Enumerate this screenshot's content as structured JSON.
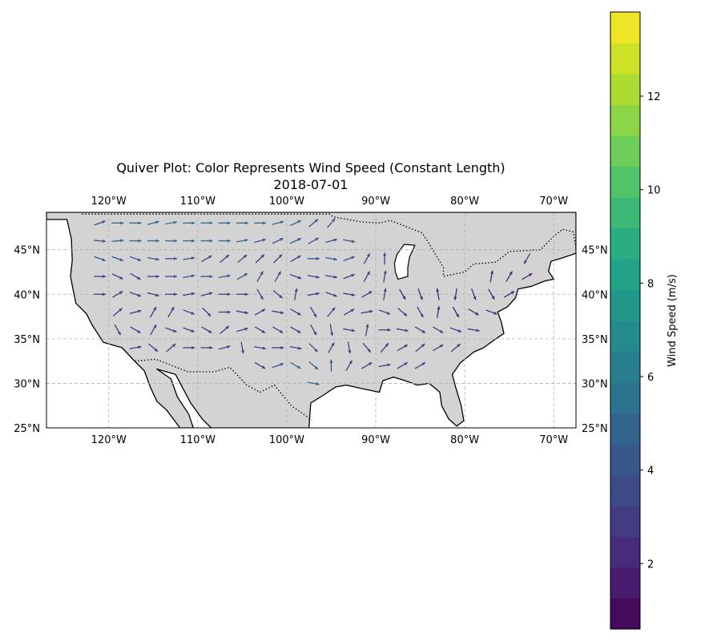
{
  "title": "Quiver Plot: Color Represents Wind Speed (Constant Length)",
  "subtitle": "2018-07-01",
  "colorbar_label": "Wind Speed (m/s)",
  "colors": {
    "land": "#d3d3d3",
    "coast": "#000000",
    "grid": "#b0b0b0",
    "viridis": [
      "#440154",
      "#482475",
      "#414487",
      "#355f8d",
      "#2a788e",
      "#21918c",
      "#22a884",
      "#44bf70",
      "#7ad151",
      "#bddf26",
      "#fde725"
    ]
  },
  "map": {
    "projection": "PlateCarree",
    "lon_range": [
      -127,
      -67.5
    ],
    "lat_range": [
      25,
      49.2
    ],
    "lon_ticks": [
      {
        "value": -120,
        "label": "120°W"
      },
      {
        "value": -110,
        "label": "110°W"
      },
      {
        "value": -100,
        "label": "100°W"
      },
      {
        "value": -90,
        "label": "90°W"
      },
      {
        "value": -80,
        "label": "80°W"
      },
      {
        "value": -70,
        "label": "70°W"
      }
    ],
    "lat_ticks": [
      {
        "value": 25,
        "label": "25°N"
      },
      {
        "value": 30,
        "label": "30°N"
      },
      {
        "value": 35,
        "label": "35°N"
      },
      {
        "value": 40,
        "label": "40°N"
      },
      {
        "value": 45,
        "label": "45°N"
      }
    ],
    "gridlines": true
  },
  "colorbar": {
    "vmin": 0.6,
    "vmax": 13.8,
    "ticks": [
      {
        "value": 2,
        "label": "2"
      },
      {
        "value": 4,
        "label": "4"
      },
      {
        "value": 6,
        "label": "6"
      },
      {
        "value": 8,
        "label": "8"
      },
      {
        "value": 10,
        "label": "10"
      },
      {
        "value": 12,
        "label": "12"
      }
    ]
  },
  "chart_data": {
    "type": "quiver",
    "date": "2018-07-01",
    "arrow_length": "constant",
    "color_variable": "Wind Speed (m/s)",
    "vectors": [
      {
        "lon": -121,
        "lat": 48,
        "dir": 20,
        "speed": 4
      },
      {
        "lon": -119,
        "lat": 48,
        "dir": 0,
        "speed": 5
      },
      {
        "lon": -117,
        "lat": 48,
        "dir": 0,
        "speed": 5
      },
      {
        "lon": -115,
        "lat": 48,
        "dir": 15,
        "speed": 5
      },
      {
        "lon": -113,
        "lat": 48,
        "dir": 10,
        "speed": 6
      },
      {
        "lon": -111,
        "lat": 48,
        "dir": 0,
        "speed": 6
      },
      {
        "lon": -109,
        "lat": 48,
        "dir": 0,
        "speed": 6
      },
      {
        "lon": -107,
        "lat": 48,
        "dir": 0,
        "speed": 5
      },
      {
        "lon": -105,
        "lat": 48,
        "dir": 0,
        "speed": 5
      },
      {
        "lon": -103,
        "lat": 48,
        "dir": 0,
        "speed": 5
      },
      {
        "lon": -101,
        "lat": 48,
        "dir": 15,
        "speed": 5
      },
      {
        "lon": -99,
        "lat": 48,
        "dir": 25,
        "speed": 5
      },
      {
        "lon": -97,
        "lat": 48,
        "dir": 40,
        "speed": 4
      },
      {
        "lon": -95,
        "lat": 48,
        "dir": 50,
        "speed": 4
      },
      {
        "lon": -121,
        "lat": 46,
        "dir": -5,
        "speed": 4
      },
      {
        "lon": -119,
        "lat": 46,
        "dir": 5,
        "speed": 5
      },
      {
        "lon": -117,
        "lat": 46,
        "dir": 0,
        "speed": 5
      },
      {
        "lon": -115,
        "lat": 46,
        "dir": 0,
        "speed": 5
      },
      {
        "lon": -113,
        "lat": 46,
        "dir": 0,
        "speed": 5
      },
      {
        "lon": -111,
        "lat": 46,
        "dir": 0,
        "speed": 5
      },
      {
        "lon": -109,
        "lat": 46,
        "dir": 0,
        "speed": 5
      },
      {
        "lon": -107,
        "lat": 46,
        "dir": 0,
        "speed": 5
      },
      {
        "lon": -105,
        "lat": 46,
        "dir": 10,
        "speed": 5
      },
      {
        "lon": -103,
        "lat": 46,
        "dir": 15,
        "speed": 4
      },
      {
        "lon": -101,
        "lat": 46,
        "dir": 25,
        "speed": 4
      },
      {
        "lon": -99,
        "lat": 46,
        "dir": 25,
        "speed": 4
      },
      {
        "lon": -97,
        "lat": 46,
        "dir": 30,
        "speed": 4
      },
      {
        "lon": -95,
        "lat": 46,
        "dir": 15,
        "speed": 4
      },
      {
        "lon": -93,
        "lat": 46,
        "dir": -10,
        "speed": 4
      },
      {
        "lon": -121,
        "lat": 44,
        "dir": -20,
        "speed": 4
      },
      {
        "lon": -119,
        "lat": 44,
        "dir": -20,
        "speed": 4
      },
      {
        "lon": -117,
        "lat": 44,
        "dir": -20,
        "speed": 4
      },
      {
        "lon": -115,
        "lat": 44,
        "dir": -10,
        "speed": 4
      },
      {
        "lon": -113,
        "lat": 44,
        "dir": 0,
        "speed": 4
      },
      {
        "lon": -111,
        "lat": 44,
        "dir": 10,
        "speed": 4
      },
      {
        "lon": -109,
        "lat": 44,
        "dir": 30,
        "speed": 3
      },
      {
        "lon": -107,
        "lat": 44,
        "dir": 40,
        "speed": 3
      },
      {
        "lon": -105,
        "lat": 44,
        "dir": 40,
        "speed": 3
      },
      {
        "lon": -103,
        "lat": 44,
        "dir": 45,
        "speed": 3
      },
      {
        "lon": -101,
        "lat": 44,
        "dir": 45,
        "speed": 3
      },
      {
        "lon": -99,
        "lat": 44,
        "dir": 30,
        "speed": 3
      },
      {
        "lon": -97,
        "lat": 44,
        "dir": 0,
        "speed": 4
      },
      {
        "lon": -95,
        "lat": 44,
        "dir": -10,
        "speed": 4
      },
      {
        "lon": -93,
        "lat": 44,
        "dir": 20,
        "speed": 4
      },
      {
        "lon": -91,
        "lat": 44,
        "dir": 60,
        "speed": 3
      },
      {
        "lon": -89,
        "lat": 44,
        "dir": 90,
        "speed": 3
      },
      {
        "lon": -73,
        "lat": 44,
        "dir": -120,
        "speed": 3
      },
      {
        "lon": -121,
        "lat": 42,
        "dir": 0,
        "speed": 3
      },
      {
        "lon": -119,
        "lat": 42,
        "dir": -25,
        "speed": 3
      },
      {
        "lon": -117,
        "lat": 42,
        "dir": -30,
        "speed": 3
      },
      {
        "lon": -115,
        "lat": 42,
        "dir": 0,
        "speed": 3
      },
      {
        "lon": -113,
        "lat": 42,
        "dir": 0,
        "speed": 4
      },
      {
        "lon": -111,
        "lat": 42,
        "dir": 10,
        "speed": 4
      },
      {
        "lon": -109,
        "lat": 42,
        "dir": 0,
        "speed": 4
      },
      {
        "lon": -107,
        "lat": 42,
        "dir": 10,
        "speed": 4
      },
      {
        "lon": -105,
        "lat": 42,
        "dir": 30,
        "speed": 4
      },
      {
        "lon": -103,
        "lat": 42,
        "dir": 60,
        "speed": 3
      },
      {
        "lon": -101,
        "lat": 42,
        "dir": 60,
        "speed": 3
      },
      {
        "lon": -99,
        "lat": 42,
        "dir": -20,
        "speed": 3
      },
      {
        "lon": -97,
        "lat": 42,
        "dir": -10,
        "speed": 3
      },
      {
        "lon": -95,
        "lat": 42,
        "dir": -10,
        "speed": 3
      },
      {
        "lon": -93,
        "lat": 42,
        "dir": 20,
        "speed": 3
      },
      {
        "lon": -91,
        "lat": 42,
        "dir": 60,
        "speed": 3
      },
      {
        "lon": -89,
        "lat": 42,
        "dir": 80,
        "speed": 3
      },
      {
        "lon": -77,
        "lat": 42,
        "dir": 80,
        "speed": 2
      },
      {
        "lon": -75,
        "lat": 42,
        "dir": 60,
        "speed": 2
      },
      {
        "lon": -73,
        "lat": 42,
        "dir": 30,
        "speed": 2
      },
      {
        "lon": -121,
        "lat": 40,
        "dir": 0,
        "speed": 3
      },
      {
        "lon": -119,
        "lat": 40,
        "dir": 30,
        "speed": 3
      },
      {
        "lon": -117,
        "lat": 40,
        "dir": -20,
        "speed": 3
      },
      {
        "lon": -115,
        "lat": 40,
        "dir": -15,
        "speed": 3
      },
      {
        "lon": -113,
        "lat": 40,
        "dir": 0,
        "speed": 3
      },
      {
        "lon": -111,
        "lat": 40,
        "dir": 10,
        "speed": 3
      },
      {
        "lon": -109,
        "lat": 40,
        "dir": 15,
        "speed": 3
      },
      {
        "lon": -107,
        "lat": 40,
        "dir": 0,
        "speed": 3
      },
      {
        "lon": -105,
        "lat": 40,
        "dir": 0,
        "speed": 3
      },
      {
        "lon": -103,
        "lat": 40,
        "dir": -60,
        "speed": 3
      },
      {
        "lon": -101,
        "lat": 40,
        "dir": -40,
        "speed": 3
      },
      {
        "lon": -99,
        "lat": 40,
        "dir": 80,
        "speed": 3
      },
      {
        "lon": -97,
        "lat": 40,
        "dir": 10,
        "speed": 3
      },
      {
        "lon": -95,
        "lat": 40,
        "dir": -20,
        "speed": 3
      },
      {
        "lon": -93,
        "lat": 40,
        "dir": -10,
        "speed": 3
      },
      {
        "lon": -91,
        "lat": 40,
        "dir": 30,
        "speed": 3
      },
      {
        "lon": -89,
        "lat": 40,
        "dir": 80,
        "speed": 3
      },
      {
        "lon": -87,
        "lat": 40,
        "dir": -60,
        "speed": 2
      },
      {
        "lon": -85,
        "lat": 40,
        "dir": -70,
        "speed": 2
      },
      {
        "lon": -83,
        "lat": 40,
        "dir": 100,
        "speed": 2
      },
      {
        "lon": -81,
        "lat": 40,
        "dir": -100,
        "speed": 2
      },
      {
        "lon": -79,
        "lat": 40,
        "dir": -70,
        "speed": 2
      },
      {
        "lon": -77,
        "lat": 40,
        "dir": -60,
        "speed": 2
      },
      {
        "lon": -75,
        "lat": 40,
        "dir": 30,
        "speed": 2
      },
      {
        "lon": -119,
        "lat": 38,
        "dir": 40,
        "speed": 3
      },
      {
        "lon": -117,
        "lat": 38,
        "dir": 15,
        "speed": 3
      },
      {
        "lon": -115,
        "lat": 38,
        "dir": 60,
        "speed": 3
      },
      {
        "lon": -113,
        "lat": 38,
        "dir": 60,
        "speed": 3
      },
      {
        "lon": -111,
        "lat": 38,
        "dir": -20,
        "speed": 3
      },
      {
        "lon": -109,
        "lat": 38,
        "dir": -45,
        "speed": 3
      },
      {
        "lon": -107,
        "lat": 38,
        "dir": 0,
        "speed": 3
      },
      {
        "lon": -105,
        "lat": 38,
        "dir": -10,
        "speed": 3
      },
      {
        "lon": -103,
        "lat": 38,
        "dir": 30,
        "speed": 3
      },
      {
        "lon": -101,
        "lat": 38,
        "dir": -10,
        "speed": 3
      },
      {
        "lon": -99,
        "lat": 38,
        "dir": -30,
        "speed": 3
      },
      {
        "lon": -97,
        "lat": 38,
        "dir": -60,
        "speed": 3
      },
      {
        "lon": -95,
        "lat": 38,
        "dir": 50,
        "speed": 3
      },
      {
        "lon": -93,
        "lat": 38,
        "dir": 30,
        "speed": 3
      },
      {
        "lon": -91,
        "lat": 38,
        "dir": 10,
        "speed": 3
      },
      {
        "lon": -89,
        "lat": 38,
        "dir": -20,
        "speed": 3
      },
      {
        "lon": -87,
        "lat": 38,
        "dir": -40,
        "speed": 3
      },
      {
        "lon": -85,
        "lat": 38,
        "dir": -60,
        "speed": 3
      },
      {
        "lon": -83,
        "lat": 38,
        "dir": 80,
        "speed": 2
      },
      {
        "lon": -81,
        "lat": 38,
        "dir": -60,
        "speed": 2
      },
      {
        "lon": -79,
        "lat": 38,
        "dir": -30,
        "speed": 2
      },
      {
        "lon": -77,
        "lat": 38,
        "dir": -20,
        "speed": 2
      },
      {
        "lon": -119,
        "lat": 36,
        "dir": -60,
        "speed": 3
      },
      {
        "lon": -117,
        "lat": 36,
        "dir": -30,
        "speed": 3
      },
      {
        "lon": -115,
        "lat": 36,
        "dir": 60,
        "speed": 3
      },
      {
        "lon": -113,
        "lat": 36,
        "dir": -20,
        "speed": 3
      },
      {
        "lon": -111,
        "lat": 36,
        "dir": -20,
        "speed": 3
      },
      {
        "lon": -109,
        "lat": 36,
        "dir": -30,
        "speed": 3
      },
      {
        "lon": -107,
        "lat": 36,
        "dir": 40,
        "speed": 3
      },
      {
        "lon": -105,
        "lat": 36,
        "dir": 15,
        "speed": 3
      },
      {
        "lon": -103,
        "lat": 36,
        "dir": -30,
        "speed": 3
      },
      {
        "lon": -101,
        "lat": 36,
        "dir": -30,
        "speed": 3
      },
      {
        "lon": -99,
        "lat": 36,
        "dir": -30,
        "speed": 3
      },
      {
        "lon": -97,
        "lat": 36,
        "dir": -60,
        "speed": 3
      },
      {
        "lon": -95,
        "lat": 36,
        "dir": -80,
        "speed": 3
      },
      {
        "lon": -93,
        "lat": 36,
        "dir": -10,
        "speed": 3
      },
      {
        "lon": -91,
        "lat": 36,
        "dir": 80,
        "speed": 3
      },
      {
        "lon": -89,
        "lat": 36,
        "dir": 0,
        "speed": 3
      },
      {
        "lon": -87,
        "lat": 36,
        "dir": -10,
        "speed": 3
      },
      {
        "lon": -85,
        "lat": 36,
        "dir": -30,
        "speed": 3
      },
      {
        "lon": -83,
        "lat": 36,
        "dir": -30,
        "speed": 3
      },
      {
        "lon": -81,
        "lat": 36,
        "dir": -20,
        "speed": 3
      },
      {
        "lon": -79,
        "lat": 36,
        "dir": -10,
        "speed": 3
      },
      {
        "lon": -117,
        "lat": 34,
        "dir": 10,
        "speed": 3
      },
      {
        "lon": -115,
        "lat": 34,
        "dir": -40,
        "speed": 3
      },
      {
        "lon": -113,
        "lat": 34,
        "dir": 40,
        "speed": 3
      },
      {
        "lon": -111,
        "lat": 34,
        "dir": 0,
        "speed": 3
      },
      {
        "lon": -109,
        "lat": 34,
        "dir": 0,
        "speed": 3
      },
      {
        "lon": -107,
        "lat": 34,
        "dir": 15,
        "speed": 3
      },
      {
        "lon": -105,
        "lat": 34,
        "dir": -80,
        "speed": 3
      },
      {
        "lon": -103,
        "lat": 34,
        "dir": -10,
        "speed": 3
      },
      {
        "lon": -101,
        "lat": 34,
        "dir": 0,
        "speed": 3
      },
      {
        "lon": -99,
        "lat": 34,
        "dir": -10,
        "speed": 3
      },
      {
        "lon": -97,
        "lat": 34,
        "dir": -45,
        "speed": 4
      },
      {
        "lon": -95,
        "lat": 34,
        "dir": 60,
        "speed": 3
      },
      {
        "lon": -93,
        "lat": 34,
        "dir": -80,
        "speed": 3
      },
      {
        "lon": -91,
        "lat": 34,
        "dir": -50,
        "speed": 3
      },
      {
        "lon": -89,
        "lat": 34,
        "dir": 50,
        "speed": 3
      },
      {
        "lon": -87,
        "lat": 34,
        "dir": 30,
        "speed": 3
      },
      {
        "lon": -85,
        "lat": 34,
        "dir": 40,
        "speed": 3
      },
      {
        "lon": -83,
        "lat": 34,
        "dir": 30,
        "speed": 3
      },
      {
        "lon": -81,
        "lat": 34,
        "dir": 40,
        "speed": 3
      },
      {
        "lon": -103,
        "lat": 32,
        "dir": -30,
        "speed": 3
      },
      {
        "lon": -101,
        "lat": 32,
        "dir": 20,
        "speed": 4
      },
      {
        "lon": -99,
        "lat": 32,
        "dir": -30,
        "speed": 5
      },
      {
        "lon": -97,
        "lat": 32,
        "dir": -40,
        "speed": 5
      },
      {
        "lon": -95,
        "lat": 32,
        "dir": 90,
        "speed": 4
      },
      {
        "lon": -93,
        "lat": 32,
        "dir": 60,
        "speed": 3
      },
      {
        "lon": -91,
        "lat": 32,
        "dir": 30,
        "speed": 3
      },
      {
        "lon": -89,
        "lat": 32,
        "dir": 10,
        "speed": 3
      },
      {
        "lon": -87,
        "lat": 32,
        "dir": 30,
        "speed": 3
      },
      {
        "lon": -85,
        "lat": 32,
        "dir": 30,
        "speed": 3
      },
      {
        "lon": -97,
        "lat": 30,
        "dir": -10,
        "speed": 5
      }
    ]
  }
}
